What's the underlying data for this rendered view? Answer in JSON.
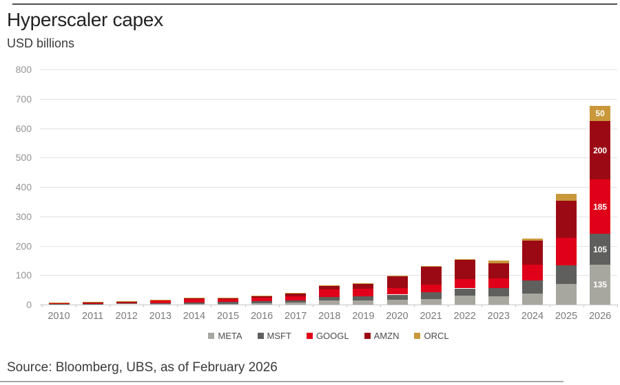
{
  "header": {
    "title": "Hyperscaler capex",
    "subtitle": "USD billions"
  },
  "footer": {
    "source": "Source: Bloomberg, UBS, as of February 2026"
  },
  "chart_data": {
    "type": "bar",
    "stacked": true,
    "title": "Hyperscaler capex",
    "ylabel": "USD billions",
    "grid": true,
    "legend_position": "bottom",
    "ylim": [
      0,
      800
    ],
    "ytick_step": 100,
    "categories": [
      "2010",
      "2011",
      "2012",
      "2013",
      "2014",
      "2015",
      "2016",
      "2017",
      "2018",
      "2019",
      "2020",
      "2021",
      "2022",
      "2023",
      "2024",
      "2025",
      "2026"
    ],
    "series": [
      {
        "name": "META",
        "color": "#a8a79f",
        "values": [
          0.3,
          0.6,
          1.2,
          1.4,
          1.8,
          2.5,
          4.5,
          6.7,
          14,
          15,
          16,
          19,
          31,
          28,
          38,
          70,
          135
        ]
      },
      {
        "name": "MSFT",
        "color": "#5f5f5d",
        "values": [
          2.0,
          2.3,
          2.8,
          4.3,
          5.3,
          5.9,
          8.3,
          8.1,
          12,
          14,
          18,
          23,
          24,
          28,
          44,
          63,
          105
        ]
      },
      {
        "name": "GOOGL",
        "color": "#e00019",
        "values": [
          4.0,
          3.4,
          3.3,
          7.4,
          11,
          9.9,
          10.2,
          13.2,
          25,
          24,
          22,
          25,
          32,
          32,
          53,
          93,
          185
        ]
      },
      {
        "name": "AMZN",
        "color": "#9b0a14",
        "values": [
          1.0,
          1.8,
          3.8,
          3.4,
          4.9,
          4.6,
          6.7,
          10.1,
          13,
          17,
          40,
          61,
          64,
          53,
          83,
          128,
          200
        ]
      },
      {
        "name": "ORCL",
        "color": "#c9983b",
        "values": [
          0.2,
          0.5,
          0.6,
          0.7,
          0.5,
          1.0,
          1.2,
          2.0,
          1.7,
          1.6,
          1.6,
          2.1,
          4.5,
          8.7,
          7,
          23,
          50
        ]
      }
    ],
    "annotations": [
      {
        "category": "2026",
        "series": "META",
        "text": "135"
      },
      {
        "category": "2026",
        "series": "MSFT",
        "text": "105"
      },
      {
        "category": "2026",
        "series": "GOOGL",
        "text": "185"
      },
      {
        "category": "2026",
        "series": "AMZN",
        "text": "200"
      },
      {
        "category": "2026",
        "series": "ORCL",
        "text": "50"
      }
    ]
  }
}
